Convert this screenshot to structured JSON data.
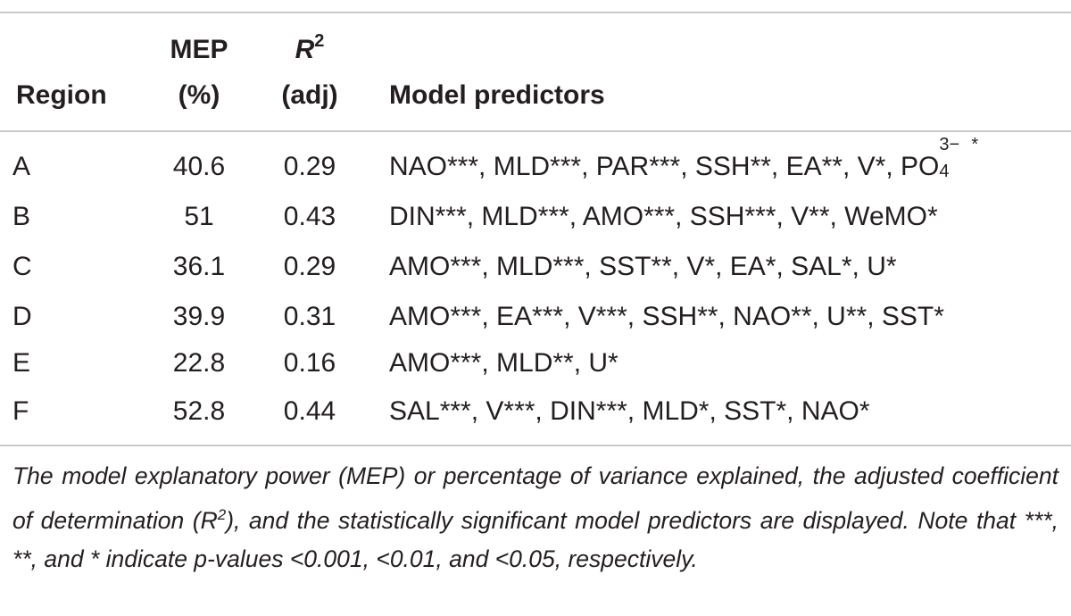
{
  "header": {
    "region": "Region",
    "mep_line1": "MEP",
    "mep_line2": "(%)",
    "r2_var": "R",
    "r2_exp": "2",
    "r2_line2": "(adj)",
    "predictors": "Model predictors"
  },
  "rows": [
    {
      "region": "A",
      "mep": "40.6",
      "r2": "0.29",
      "predictors": "NAO***, MLD***, PAR***, SSH**, EA**, V*, PO",
      "po4_sup": "3−",
      "po4_sub": "4",
      "po4_star": "*"
    },
    {
      "region": "B",
      "mep": "51",
      "r2": "0.43",
      "predictors": "DIN***, MLD***, AMO***, SSH***, V**, WeMO*"
    },
    {
      "region": "C",
      "mep": "36.1",
      "r2": "0.29",
      "predictors": "AMO***, MLD***, SST**, V*, EA*, SAL*, U*"
    },
    {
      "region": "D",
      "mep": "39.9",
      "r2": "0.31",
      "predictors": "AMO***, EA***, V***, SSH**, NAO**, U**, SST*"
    },
    {
      "region": "E",
      "mep": "22.8",
      "r2": "0.16",
      "predictors": "AMO***, MLD**, U*"
    },
    {
      "region": "F",
      "mep": "52.8",
      "r2": "0.44",
      "predictors": "SAL***, V***, DIN***, MLD*, SST*, NAO*"
    }
  ],
  "footnote": {
    "part1": "The model explanatory power (MEP) or percentage of variance explained, the adjusted coefficient of determination (",
    "r": "R",
    "exp": "2",
    "part2": "), and the statistically significant model predictors are displayed. Note that ***, **, and * indicate p-values <0.001, <0.01, and <0.05, respectively."
  }
}
